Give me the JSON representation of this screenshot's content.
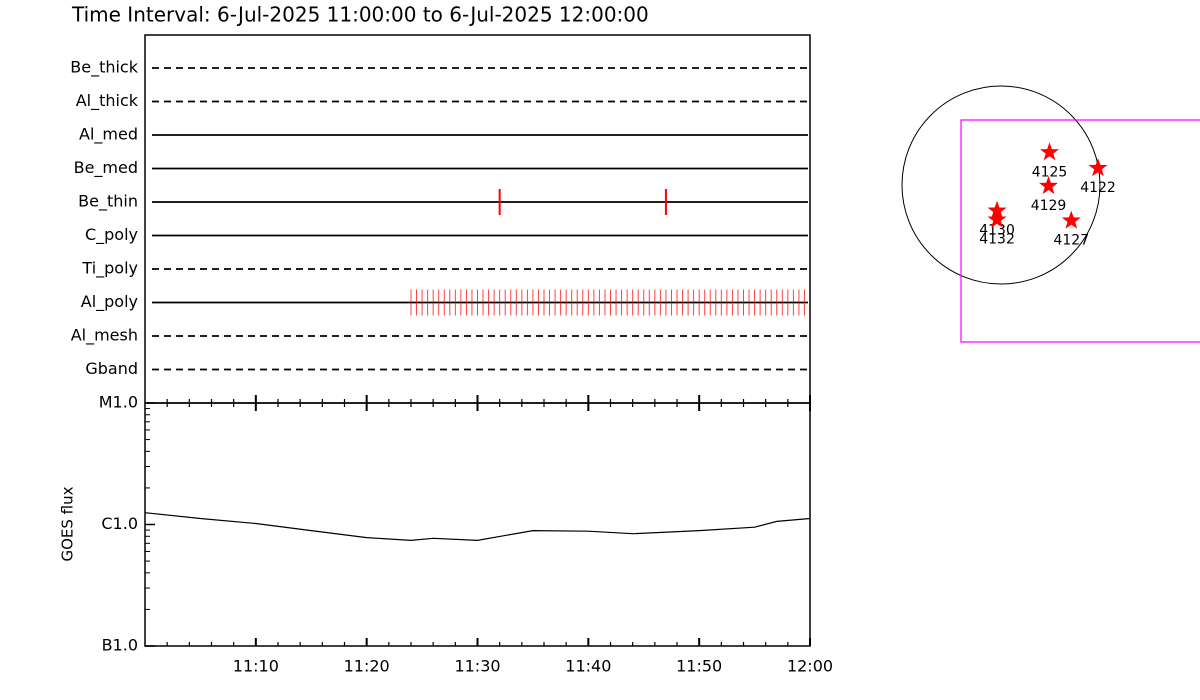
{
  "chart_data": [
    {
      "type": "timeline",
      "title": "Time Interval:  6-Jul-2025 11:00:00 to  6-Jul-2025 12:00:00",
      "xlim": [
        0,
        60
      ],
      "color": "#ff0000",
      "rows": [
        {
          "name": "Be_thick",
          "style": "dashed",
          "marks": []
        },
        {
          "name": "Al_thick",
          "style": "dashed",
          "marks": []
        },
        {
          "name": "Al_med",
          "style": "solid",
          "marks": []
        },
        {
          "name": "Be_med",
          "style": "solid",
          "marks": []
        },
        {
          "name": "Be_thin",
          "style": "solid",
          "marks": [
            32,
            47
          ]
        },
        {
          "name": "C_poly",
          "style": "solid",
          "marks": []
        },
        {
          "name": "Ti_poly",
          "style": "dashed",
          "marks": []
        },
        {
          "name": "Al_poly",
          "style": "solid",
          "marks": [
            24,
            24.5,
            25,
            25.5,
            26,
            26.5,
            27,
            27.5,
            28,
            28.5,
            29,
            29.5,
            30,
            30.5,
            31,
            31.5,
            32,
            32.5,
            33,
            33.5,
            34,
            34.5,
            35,
            35.5,
            36,
            36.5,
            37,
            37.5,
            38,
            38.5,
            39,
            39.5,
            40,
            40.5,
            41,
            41.5,
            42,
            42.5,
            43,
            43.5,
            44,
            44.5,
            45,
            45.5,
            46,
            46.5,
            47,
            47.5,
            48,
            48.5,
            49,
            49.5,
            50,
            50.5,
            51,
            51.5,
            52,
            52.5,
            53,
            53.5,
            54,
            54.5,
            55,
            55.5,
            56,
            56.5,
            57,
            57.5,
            58,
            58.5,
            59,
            59.5
          ]
        },
        {
          "name": "Al_mesh",
          "style": "dashed",
          "marks": []
        },
        {
          "name": "Gband",
          "style": "dashed",
          "marks": []
        }
      ]
    },
    {
      "type": "line",
      "ylabel": "GOES flux",
      "log_y": true,
      "color": "#000000",
      "xlim": [
        0,
        60
      ],
      "xticks": [
        {
          "value": 10,
          "label": "11:10"
        },
        {
          "value": 20,
          "label": "11:20"
        },
        {
          "value": 30,
          "label": "11:30"
        },
        {
          "value": 40,
          "label": "11:40"
        },
        {
          "value": 50,
          "label": "11:50"
        },
        {
          "value": 60,
          "label": "12:00"
        }
      ],
      "xminorticks": [
        2,
        4,
        6,
        8,
        12,
        14,
        16,
        18,
        22,
        24,
        26,
        28,
        32,
        34,
        36,
        38,
        42,
        44,
        46,
        48,
        52,
        54,
        56,
        58
      ],
      "ylim": [
        1e-07,
        1e-05
      ],
      "yticks": [
        {
          "value": 1e-07,
          "label": "B1.0"
        },
        {
          "value": 1e-06,
          "label": "C1.0"
        },
        {
          "value": 1e-05,
          "label": "M1.0"
        }
      ],
      "yminorticks": [
        2e-07,
        3e-07,
        4e-07,
        5e-07,
        6e-07,
        7e-07,
        8e-07,
        9e-07,
        2e-06,
        3e-06,
        4e-06,
        5e-06,
        6e-06,
        7e-06,
        8e-06,
        9e-06
      ],
      "x": [
        0,
        5,
        10,
        15,
        20,
        24,
        26,
        30,
        35,
        40,
        44,
        50,
        55,
        57,
        60
      ],
      "values": [
        1.25e-06,
        1.12e-06,
        1.02e-06,
        8.9e-07,
        7.8e-07,
        7.4e-07,
        7.7e-07,
        7.4e-07,
        8.9e-07,
        8.8e-07,
        8.4e-07,
        8.9e-07,
        9.5e-07,
        1.06e-06,
        1.12e-06
      ]
    },
    {
      "type": "map",
      "color": "#ff0000",
      "stars": [
        {
          "label": "4125",
          "x": 0.49,
          "y": 0.33
        },
        {
          "label": "4122",
          "x": 0.98,
          "y": 0.17
        },
        {
          "label": "4129",
          "x": 0.48,
          "y": -0.01
        },
        {
          "label": "4130",
          "x": -0.04,
          "y": -0.26
        },
        {
          "label": "4132",
          "x": -0.04,
          "y": -0.35
        },
        {
          "label": "4127",
          "x": 0.71,
          "y": -0.36
        }
      ]
    }
  ]
}
